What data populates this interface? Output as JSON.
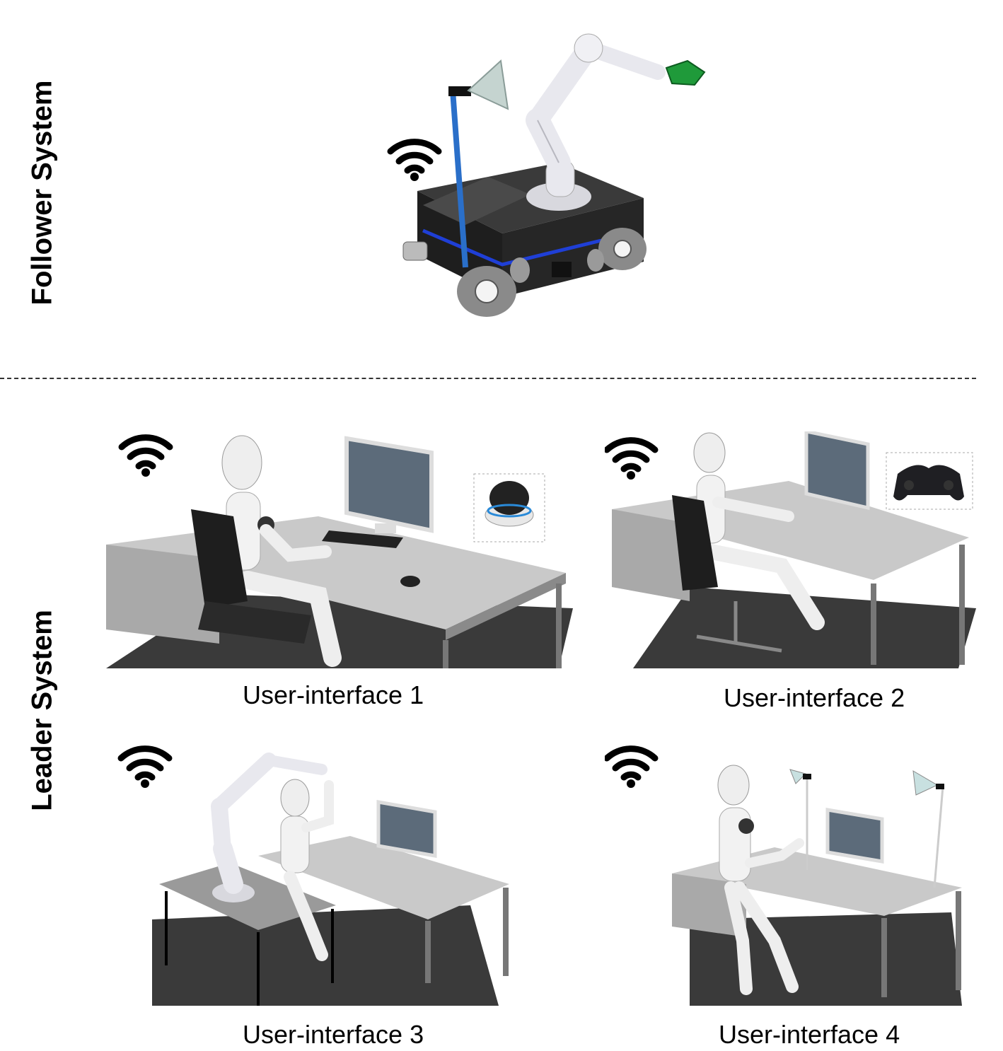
{
  "sections": {
    "follower": {
      "label": "Follower System"
    },
    "leader": {
      "label": "Leader System"
    }
  },
  "panels": [
    {
      "caption": "User-interface 1",
      "device": "3d-mouse"
    },
    {
      "caption": "User-interface 2",
      "device": "gamepad"
    },
    {
      "caption": "User-interface 3",
      "device": "haptic-robot-arm"
    },
    {
      "caption": "User-interface 4",
      "device": "motion-tracking-cameras"
    }
  ],
  "colors": {
    "robot_body": "#2b2b2b",
    "mast": "#2a6fc9",
    "led_strip": "#1f3fd6",
    "hand": "#1f9a3a",
    "arm": "#e8e8ee",
    "floor": "#3a3a3a",
    "desk": "#bdbdbd",
    "wifi": "#000000"
  }
}
